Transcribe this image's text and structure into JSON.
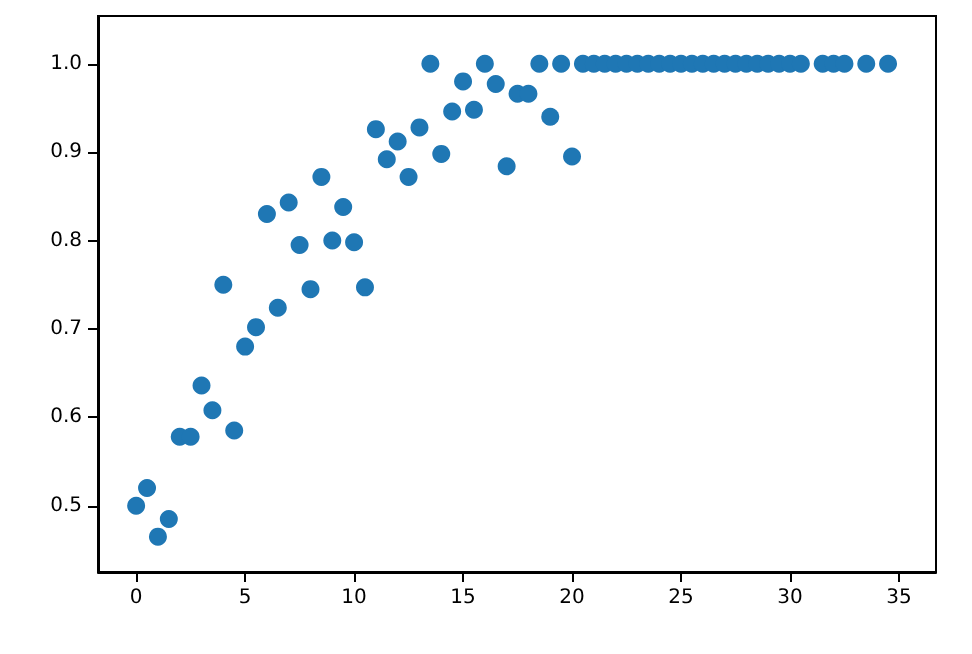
{
  "chart_data": {
    "type": "scatter",
    "marker": "circle",
    "grid": false,
    "x": [
      0,
      0.5,
      1,
      1.5,
      2,
      2.5,
      3,
      3.5,
      4,
      4.5,
      5,
      5.5,
      6,
      6.5,
      7,
      7.5,
      8,
      8.5,
      9,
      9.5,
      10,
      10.5,
      11,
      11.5,
      12,
      12.5,
      13,
      13.5,
      14,
      14.5,
      15,
      15.5,
      16,
      16.5,
      17,
      17.5,
      18,
      18.5,
      19,
      19.5,
      20,
      20.5,
      21,
      21.5,
      22,
      22.5,
      23,
      23.5,
      24,
      24.5,
      25,
      25.5,
      26,
      26.5,
      27,
      27.5,
      28,
      28.5,
      29,
      29.5,
      30,
      30.5,
      31.5,
      32,
      32.5,
      33.5,
      34.5
    ],
    "series": [
      {
        "color": "#1f77b4",
        "values": [
          0.5,
          0.52,
          0.465,
          0.485,
          0.578,
          0.578,
          0.636,
          0.608,
          0.75,
          0.585,
          0.68,
          0.702,
          0.83,
          0.724,
          0.843,
          0.795,
          0.745,
          0.872,
          0.8,
          0.838,
          0.798,
          0.747,
          0.926,
          0.892,
          0.912,
          0.872,
          0.928,
          1.0,
          0.898,
          0.946,
          0.98,
          0.948,
          1.0,
          0.977,
          0.884,
          0.966,
          0.966,
          1.0,
          0.94,
          1.0,
          0.895,
          1,
          1,
          1,
          1,
          1,
          1,
          1,
          1,
          1,
          1,
          1,
          1,
          1,
          1,
          1,
          1,
          1,
          1,
          1,
          1,
          1,
          1,
          1,
          1,
          1,
          1
        ]
      }
    ],
    "xlim": [
      -1.75,
      36.7
    ],
    "xticks": [
      0,
      5,
      10,
      15,
      20,
      25,
      30,
      35
    ],
    "ylim": [
      0.425,
      1.054
    ],
    "yticks": [
      {
        "value": 0.5,
        "label": "0.5"
      },
      {
        "value": 0.6,
        "label": "0.6"
      },
      {
        "value": 0.7,
        "label": "0.7"
      },
      {
        "value": 0.8,
        "label": "0.8"
      },
      {
        "value": 0.9,
        "label": "0.9"
      },
      {
        "value": 1,
        "label": "1.0"
      }
    ]
  }
}
